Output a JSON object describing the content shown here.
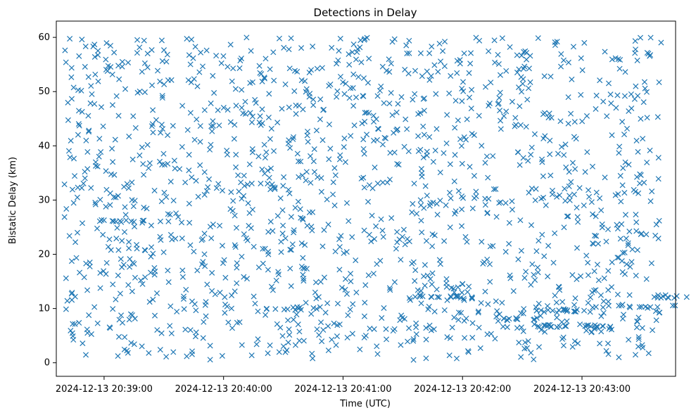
{
  "chart_data": {
    "type": "scatter",
    "title": "Detections in Delay",
    "xlabel": "Time (UTC)",
    "ylabel": "Bistatic Delay (km)",
    "marker": "x",
    "color": "#1f77b4",
    "grid": false,
    "legend": "none",
    "x_ticks": [
      "2024-12-13 20:39:00",
      "2024-12-13 20:40:00",
      "2024-12-13 20:41:00",
      "2024-12-13 20:42:00",
      "2024-12-13 20:43:00"
    ],
    "y_ticks": [
      "0",
      "10",
      "20",
      "30",
      "40",
      "50",
      "60"
    ],
    "xlim": [
      "2024-12-13 20:38:36",
      "2024-12-13 20:43:47"
    ],
    "ylim": [
      -2.5,
      63
    ],
    "time_range": [
      "2024-12-13 20:38:40",
      "2024-12-13 20:43:40"
    ],
    "y_range": [
      0.5,
      60
    ],
    "approx_point_count": 1500,
    "note": "Dense random-like scatter of detections; horizontal clusters visible near y≈12 (around 20:41:35–20:41:45) and y≈7 (around 20:42:20–20:43:10)."
  }
}
